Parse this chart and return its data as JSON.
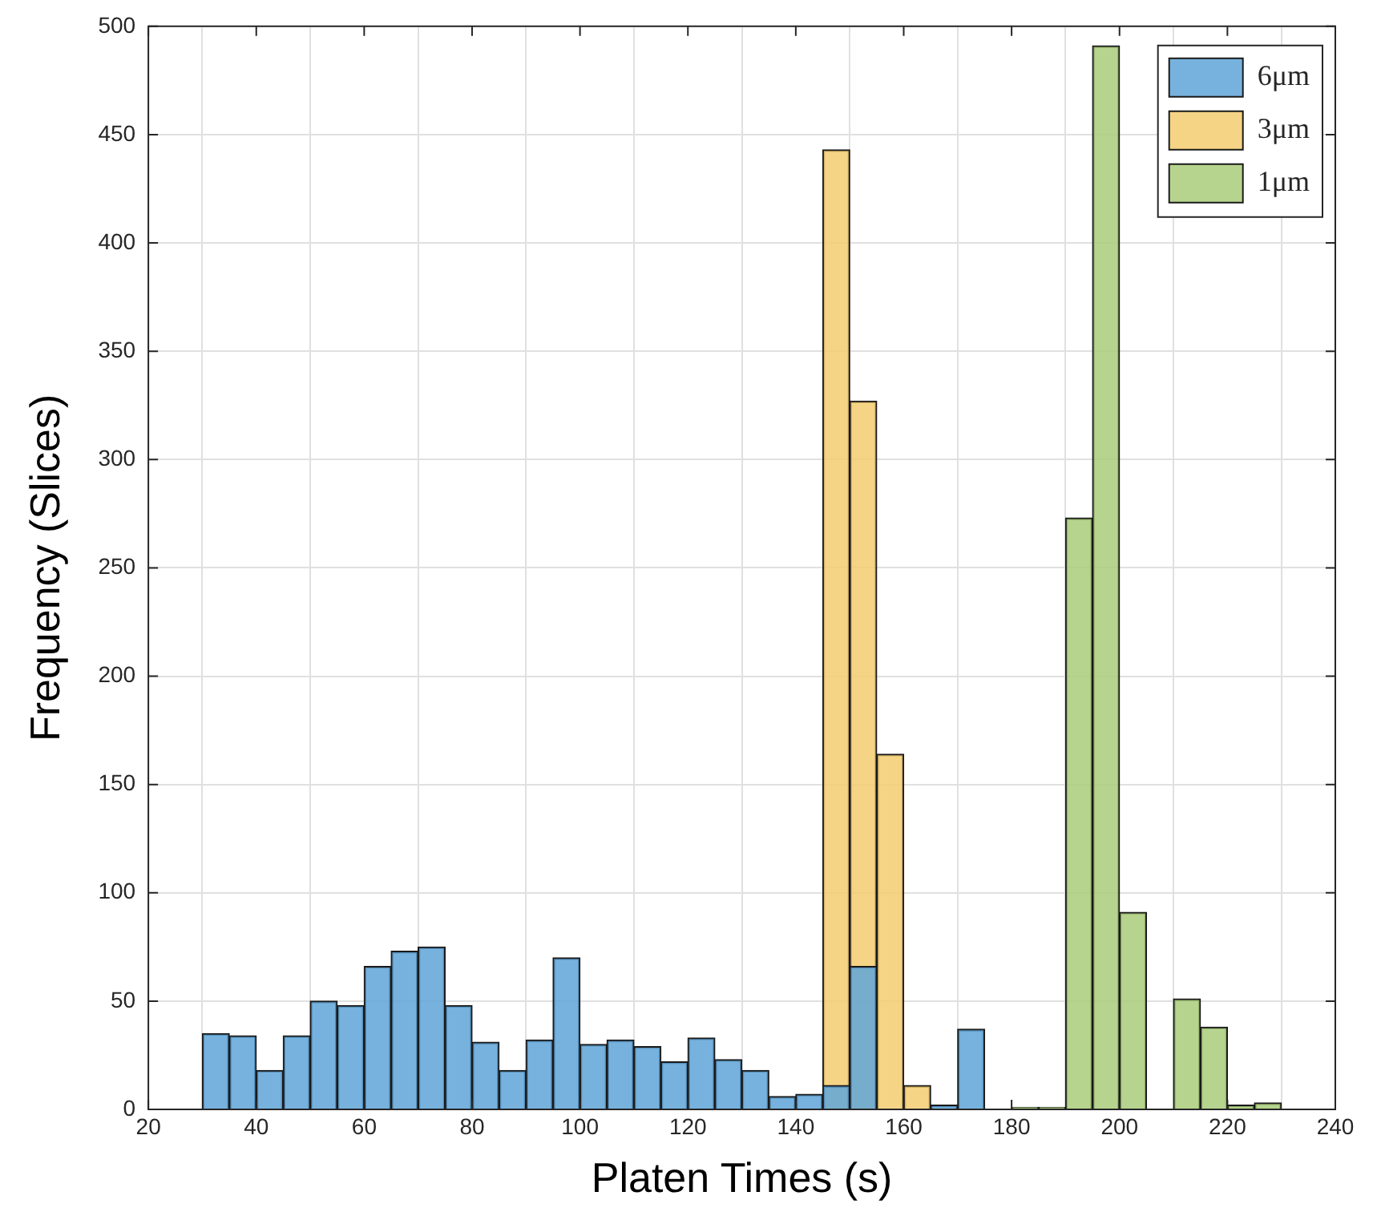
{
  "chart_data": {
    "type": "histogram",
    "xlabel": "Platen Times (s)",
    "ylabel": "Frequency (Slices)",
    "bins": [
      30,
      35,
      40,
      45,
      50,
      55,
      60,
      65,
      70,
      75,
      80,
      85,
      90,
      95,
      100,
      105,
      110,
      115,
      120,
      125,
      130,
      135,
      140,
      145,
      150,
      155,
      160,
      165,
      170,
      175,
      180,
      185,
      190,
      195,
      200,
      205,
      210,
      215,
      220,
      225,
      230
    ],
    "series": [
      {
        "name": "6μm",
        "color": "#5fa5d8",
        "values": [
          35,
          34,
          18,
          34,
          50,
          48,
          66,
          73,
          75,
          48,
          31,
          18,
          32,
          70,
          30,
          32,
          29,
          22,
          33,
          23,
          18,
          6,
          7,
          11,
          66,
          0,
          0,
          2,
          37,
          null,
          null,
          null,
          null,
          null,
          null,
          null,
          null,
          null,
          null,
          null
        ]
      },
      {
        "name": "3μm",
        "color": "#f3cd70",
        "values": [
          null,
          null,
          null,
          null,
          null,
          null,
          null,
          null,
          null,
          null,
          null,
          null,
          null,
          null,
          null,
          null,
          null,
          null,
          null,
          null,
          null,
          null,
          null,
          443,
          327,
          164,
          11,
          null,
          null,
          null,
          null,
          null,
          null,
          null,
          null,
          null,
          null,
          null,
          null,
          null
        ]
      },
      {
        "name": "1μm",
        "color": "#a9cc7a",
        "values": [
          null,
          null,
          null,
          null,
          null,
          null,
          null,
          null,
          null,
          null,
          null,
          null,
          null,
          null,
          null,
          null,
          null,
          null,
          null,
          null,
          null,
          null,
          null,
          null,
          null,
          null,
          null,
          null,
          null,
          null,
          1,
          1,
          273,
          491,
          91,
          0,
          51,
          38,
          2,
          3
        ]
      }
    ],
    "xlim": [
      20,
      240
    ],
    "xticks": [
      20,
      40,
      60,
      80,
      100,
      120,
      140,
      160,
      180,
      200,
      220,
      240
    ],
    "ylim": [
      0,
      500
    ],
    "yticks": [
      0,
      50,
      100,
      150,
      200,
      250,
      300,
      350,
      400,
      450,
      500
    ],
    "grid": true,
    "legend": "top right"
  }
}
